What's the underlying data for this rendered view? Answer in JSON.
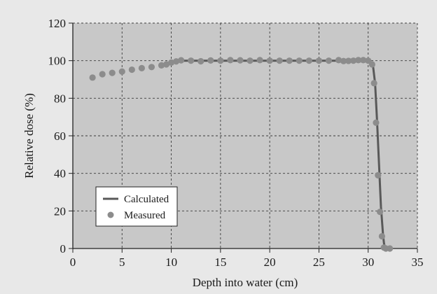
{
  "chart_data": {
    "type": "line",
    "xlabel": "Depth into water (cm)",
    "ylabel": "Relative dose (%)",
    "xlim": [
      0,
      35
    ],
    "ylim": [
      0,
      120
    ],
    "xticks": [
      0,
      5,
      10,
      15,
      20,
      25,
      30,
      35
    ],
    "yticks": [
      0,
      20,
      40,
      60,
      80,
      100,
      120
    ],
    "grid": true,
    "legend_position": "bottom-left",
    "colors": {
      "plot_background": "#c8c8c8",
      "figure_background": "#e8e8e8",
      "calculated_line": "#595959",
      "measured_marker": "#8c8c8c"
    },
    "series": [
      {
        "name": "Calculated",
        "style": "line",
        "x": [
          10,
          11,
          12,
          14,
          16,
          18,
          20,
          22,
          24,
          26,
          28,
          29.5,
          30.2,
          30.5,
          30.7,
          30.9,
          31.1,
          31.3,
          31.5,
          31.6,
          31.7,
          31.8
        ],
        "y": [
          99.5,
          100,
          100,
          100,
          100,
          100,
          100,
          100,
          100,
          100,
          100,
          100,
          99.5,
          97,
          88,
          68,
          45,
          22,
          8,
          3,
          0.5,
          0
        ]
      },
      {
        "name": "Measured",
        "style": "markers",
        "x": [
          2,
          3,
          4,
          5,
          6,
          7,
          8,
          9,
          9.5,
          10,
          10.5,
          11,
          12,
          13,
          14,
          15,
          16,
          17,
          18,
          19,
          20,
          21,
          22,
          23,
          24,
          25,
          26,
          27,
          27.5,
          28,
          28.5,
          29,
          29.5,
          30,
          30.4,
          30.6,
          30.8,
          31.0,
          31.2,
          31.4,
          31.6,
          31.8,
          32.2
        ],
        "y": [
          91,
          92.8,
          93.5,
          94.2,
          95.2,
          96,
          96.6,
          97.5,
          98,
          99,
          99.6,
          100.2,
          100,
          99.7,
          100.1,
          100,
          100.3,
          100.2,
          100,
          100.3,
          100,
          100,
          100,
          100,
          100,
          100,
          100,
          100.3,
          99.8,
          99.9,
          100,
          100.3,
          100.3,
          100,
          98,
          88,
          67,
          39,
          19.5,
          6.5,
          0.5,
          0,
          0
        ]
      }
    ]
  }
}
